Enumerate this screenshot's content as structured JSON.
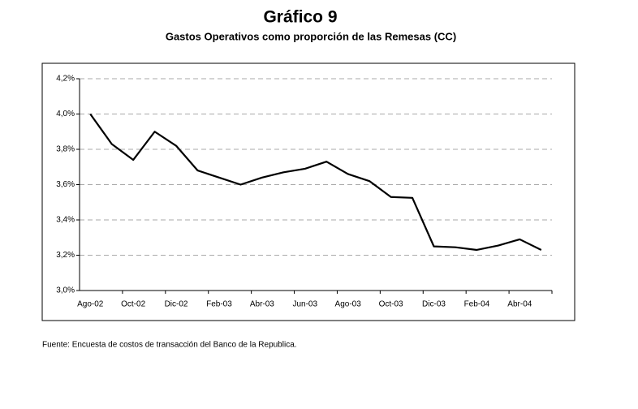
{
  "chart_data": {
    "type": "line",
    "title": "Gráfico 9",
    "subtitle": "Gastos Operativos como proporción de las Remesas (CC)",
    "source": "Fuente: Encuesta de costos de transacción del Banco de la Republica.",
    "categories": [
      "Ago-02",
      null,
      "Oct-02",
      null,
      "Dic-02",
      null,
      "Feb-03",
      null,
      "Abr-03",
      null,
      "Jun-03",
      null,
      "Ago-03",
      null,
      "Oct-03",
      null,
      "Dic-03",
      null,
      "Feb-04",
      null,
      "Abr-04",
      null
    ],
    "series": [
      {
        "name": "Gastos Operativos",
        "color": "#000000",
        "values": [
          4.0,
          3.83,
          3.74,
          3.9,
          3.82,
          3.68,
          3.64,
          3.6,
          3.64,
          3.67,
          3.69,
          3.73,
          3.66,
          3.62,
          3.53,
          3.525,
          3.25,
          3.245,
          3.23,
          3.255,
          3.29,
          3.23
        ]
      }
    ],
    "ylim": [
      3.0,
      4.2
    ],
    "yticks": [
      {
        "value": 3.0,
        "label": "3,0%"
      },
      {
        "value": 3.2,
        "label": "3,2%"
      },
      {
        "value": 3.4,
        "label": "3,4%"
      },
      {
        "value": 3.6,
        "label": "3,6%"
      },
      {
        "value": 3.8,
        "label": "3,8%"
      },
      {
        "value": 4.0,
        "label": "4,0%"
      },
      {
        "value": 4.2,
        "label": "4,2%"
      }
    ],
    "grid": true
  }
}
